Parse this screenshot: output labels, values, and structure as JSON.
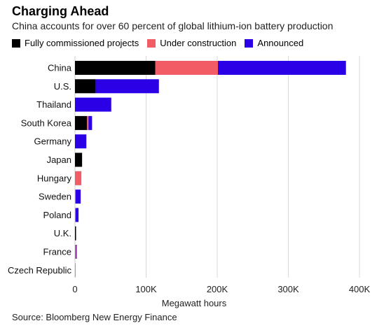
{
  "chart_data": {
    "type": "bar",
    "orientation": "horizontal",
    "stacked": true,
    "title": "Charging Ahead",
    "subtitle": "China accounts for over 60 percent of global lithium-ion battery production",
    "categories": [
      "China",
      "U.S.",
      "Thailand",
      "South Korea",
      "Germany",
      "Japan",
      "Hungary",
      "Sweden",
      "Poland",
      "U.K.",
      "France",
      "Czech Republic"
    ],
    "series": [
      {
        "name": "Fully commissioned projects",
        "color": "#000000",
        "values": [
          113000,
          29000,
          0,
          17000,
          0,
          10000,
          0,
          0,
          0,
          1500,
          0,
          0
        ]
      },
      {
        "name": "Under construction",
        "color": "#f25c64",
        "values": [
          88000,
          0,
          0,
          2000,
          0,
          0,
          9000,
          1000,
          1000,
          0,
          1500,
          800
        ]
      },
      {
        "name": "Announced",
        "color": "#2b00e6",
        "values": [
          180000,
          89000,
          51000,
          5000,
          16000,
          0,
          0,
          7000,
          4000,
          0,
          1000,
          0
        ]
      }
    ],
    "xlabel": "Megawatt hours",
    "ylabel": "",
    "xlim": [
      0,
      400000
    ],
    "xticks": [
      0,
      100000,
      200000,
      300000,
      400000
    ],
    "xtick_labels": [
      "0",
      "100K",
      "200K",
      "300K",
      "400K"
    ],
    "grid": true,
    "legend_position": "top-left"
  },
  "source": "Source: Bloomberg New Energy Finance"
}
